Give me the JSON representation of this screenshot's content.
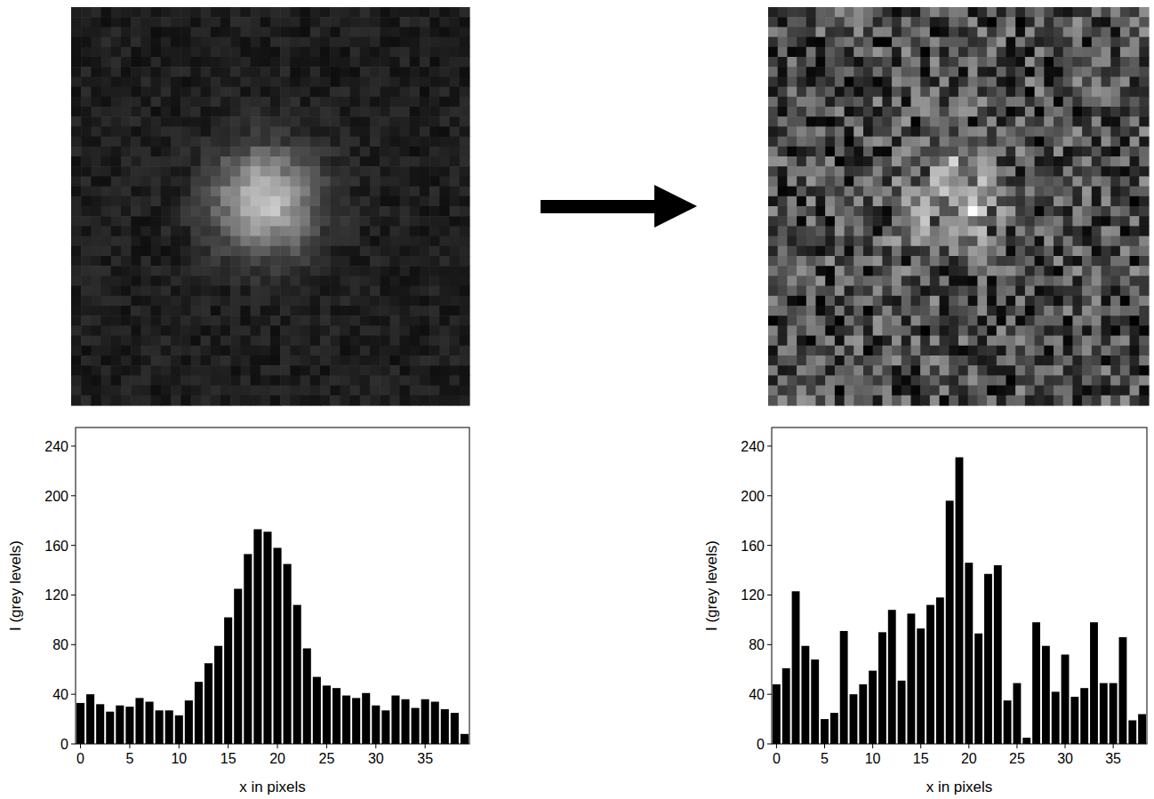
{
  "chart_data": [
    {
      "type": "bar",
      "x_label": "x in pixels",
      "y_label": "I (grey levels)",
      "color": "#000000",
      "x": [
        0,
        1,
        2,
        3,
        4,
        5,
        6,
        7,
        8,
        9,
        10,
        11,
        12,
        13,
        14,
        15,
        16,
        17,
        18,
        19,
        20,
        21,
        22,
        23,
        24,
        25,
        26,
        27,
        28,
        29,
        30,
        31,
        32,
        33,
        34,
        35,
        36,
        37,
        38,
        39
      ],
      "values": [
        33,
        40,
        32,
        26,
        31,
        30,
        37,
        34,
        27,
        27,
        23,
        35,
        50,
        65,
        79,
        102,
        125,
        153,
        173,
        171,
        158,
        145,
        112,
        77,
        54,
        47,
        45,
        39,
        37,
        41,
        31,
        27,
        39,
        36,
        29,
        36,
        34,
        28,
        25,
        8
      ],
      "xlim": [
        -0.5,
        39.5
      ],
      "ylim": [
        0,
        255
      ],
      "xticks": [
        0,
        5,
        10,
        15,
        20,
        25,
        30,
        35
      ],
      "yticks": [
        0,
        40,
        80,
        120,
        160,
        200,
        240
      ]
    },
    {
      "type": "bar",
      "x_label": "x in pixels",
      "y_label": "I (grey levels)",
      "color": "#000000",
      "x": [
        0,
        1,
        2,
        3,
        4,
        5,
        6,
        7,
        8,
        9,
        10,
        11,
        12,
        13,
        14,
        15,
        16,
        17,
        18,
        19,
        20,
        21,
        22,
        23,
        24,
        25,
        26,
        27,
        28,
        29,
        30,
        31,
        32,
        33,
        34,
        35,
        36,
        37,
        38
      ],
      "values": [
        48,
        61,
        123,
        79,
        68,
        20,
        25,
        91,
        40,
        48,
        59,
        90,
        108,
        51,
        105,
        93,
        112,
        118,
        196,
        231,
        146,
        89,
        137,
        144,
        35,
        49,
        5,
        98,
        79,
        42,
        72,
        38,
        45,
        98,
        49,
        49,
        86,
        19,
        24
      ],
      "xlim": [
        -0.5,
        38.5
      ],
      "ylim": [
        0,
        255
      ],
      "xticks": [
        0,
        5,
        10,
        15,
        20,
        25,
        30,
        35
      ],
      "yticks": [
        0,
        40,
        80,
        120,
        160,
        200,
        240
      ]
    }
  ]
}
